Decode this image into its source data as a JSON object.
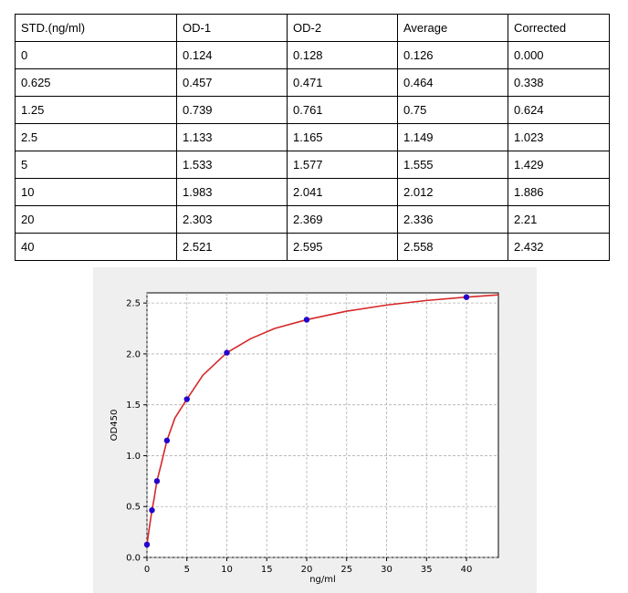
{
  "table": {
    "headers": [
      "STD.(ng/ml)",
      "OD-1",
      "OD-2",
      "Average",
      "Corrected"
    ],
    "rows": [
      [
        "0",
        "0.124",
        "0.128",
        "0.126",
        "0.000"
      ],
      [
        "0.625",
        "0.457",
        "0.471",
        "0.464",
        "0.338"
      ],
      [
        "1.25",
        "0.739",
        "0.761",
        "0.75",
        "0.624"
      ],
      [
        "2.5",
        "1.133",
        "1.165",
        "1.149",
        "1.023"
      ],
      [
        "5",
        "1.533",
        "1.577",
        "1.555",
        "1.429"
      ],
      [
        "10",
        "1.983",
        "2.041",
        "2.012",
        "1.886"
      ],
      [
        "20",
        "2.303",
        "2.369",
        "2.336",
        "2.21"
      ],
      [
        "40",
        "2.521",
        "2.595",
        "2.558",
        "2.432"
      ]
    ]
  },
  "chart_data": {
    "type": "scatter",
    "xlabel": "ng/ml",
    "ylabel": "OD450",
    "xlim": [
      0,
      44
    ],
    "ylim": [
      0,
      2.6
    ],
    "xticks": [
      0,
      5,
      10,
      15,
      20,
      25,
      30,
      35,
      40
    ],
    "yticks": [
      0.0,
      0.5,
      1.0,
      1.5,
      2.0,
      2.5
    ],
    "ytick_labels": [
      "0.0",
      "0.5",
      "1.0",
      "1.5",
      "2.0",
      "2.5"
    ],
    "grid": true,
    "points": {
      "x": [
        0,
        0.625,
        1.25,
        2.5,
        5,
        10,
        20,
        40
      ],
      "y": [
        0.126,
        0.464,
        0.75,
        1.149,
        1.555,
        2.012,
        2.336,
        2.558
      ],
      "color": "#2200cc"
    },
    "fit_curve": {
      "color": "#d62728",
      "x": [
        0,
        0.2,
        0.4,
        0.625,
        0.9,
        1.25,
        1.7,
        2.5,
        3.5,
        5,
        7,
        10,
        13,
        16,
        20,
        25,
        30,
        35,
        40,
        44
      ],
      "y": [
        0.126,
        0.24,
        0.345,
        0.464,
        0.58,
        0.75,
        0.89,
        1.149,
        1.37,
        1.555,
        1.79,
        2.012,
        2.15,
        2.25,
        2.336,
        2.42,
        2.48,
        2.525,
        2.558,
        2.58
      ]
    }
  }
}
